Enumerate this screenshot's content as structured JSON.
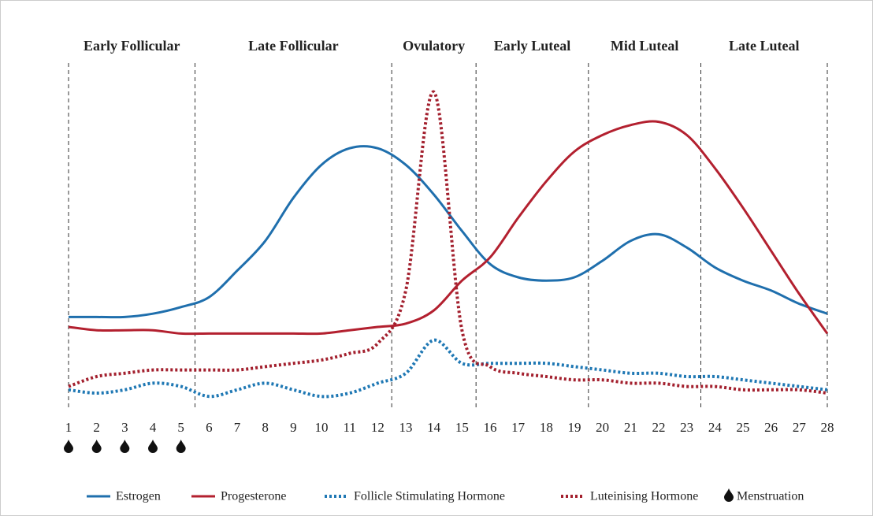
{
  "chart_data": {
    "type": "line",
    "phases": [
      {
        "name": "Early Follicular",
        "start": 1,
        "end": 5.5
      },
      {
        "name": "Late Follicular",
        "start": 5.5,
        "end": 12.5
      },
      {
        "name": "Ovulatory",
        "start": 12.5,
        "end": 15.5
      },
      {
        "name": "Early Luteal",
        "start": 15.5,
        "end": 19.5
      },
      {
        "name": "Mid Luteal",
        "start": 19.5,
        "end": 23.5
      },
      {
        "name": "Late Luteal",
        "start": 23.5,
        "end": 28
      }
    ],
    "x": [
      1,
      2,
      3,
      4,
      5,
      6,
      7,
      8,
      9,
      10,
      11,
      12,
      13,
      14,
      15,
      16,
      17,
      18,
      19,
      20,
      21,
      22,
      23,
      24,
      25,
      26,
      27,
      28
    ],
    "xlim": [
      1,
      28
    ],
    "xticks": [
      1,
      2,
      3,
      4,
      5,
      6,
      7,
      8,
      9,
      10,
      11,
      12,
      13,
      14,
      15,
      16,
      17,
      18,
      19,
      20,
      21,
      22,
      23,
      24,
      25,
      26,
      27,
      28
    ],
    "ylim": [
      0,
      100
    ],
    "series": [
      {
        "name": "Estrogen",
        "color": "#1f6fad",
        "style": "solid",
        "values": [
          28,
          28,
          28,
          29,
          31,
          34,
          42,
          51,
          64,
          74,
          79,
          79,
          74,
          65,
          54,
          44,
          40,
          39,
          40,
          45,
          51,
          53,
          49,
          43,
          39,
          36,
          32,
          29
        ]
      },
      {
        "name": "Progesterone",
        "color": "#b3202f",
        "style": "solid",
        "values": [
          25,
          24,
          24,
          24,
          23,
          23,
          23,
          23,
          23,
          23,
          24,
          25,
          26,
          30,
          39,
          46,
          58,
          69,
          78,
          83,
          86,
          87,
          83,
          73,
          61,
          48,
          35,
          23
        ]
      },
      {
        "name": "Follicle Stimulating Hormone",
        "color": "#1f78b4",
        "style": "dotted",
        "values": [
          6,
          5,
          6,
          8,
          7,
          4,
          6,
          8,
          6,
          4,
          5,
          8,
          11,
          21,
          14,
          14,
          14,
          14,
          13,
          12,
          11,
          11,
          10,
          10,
          9,
          8,
          7,
          6
        ]
      },
      {
        "name": "Luteinising Hormone",
        "color": "#a3202e",
        "style": "dotted",
        "values": [
          7,
          10,
          11,
          12,
          12,
          12,
          12,
          13,
          14,
          15,
          17,
          20,
          36,
          96,
          24,
          13,
          11,
          10,
          9,
          9,
          8,
          8,
          7,
          7,
          6,
          6,
          6,
          5
        ]
      }
    ],
    "menstruation": {
      "name": "Menstruation",
      "days": [
        1,
        2,
        3,
        4,
        5
      ]
    }
  }
}
